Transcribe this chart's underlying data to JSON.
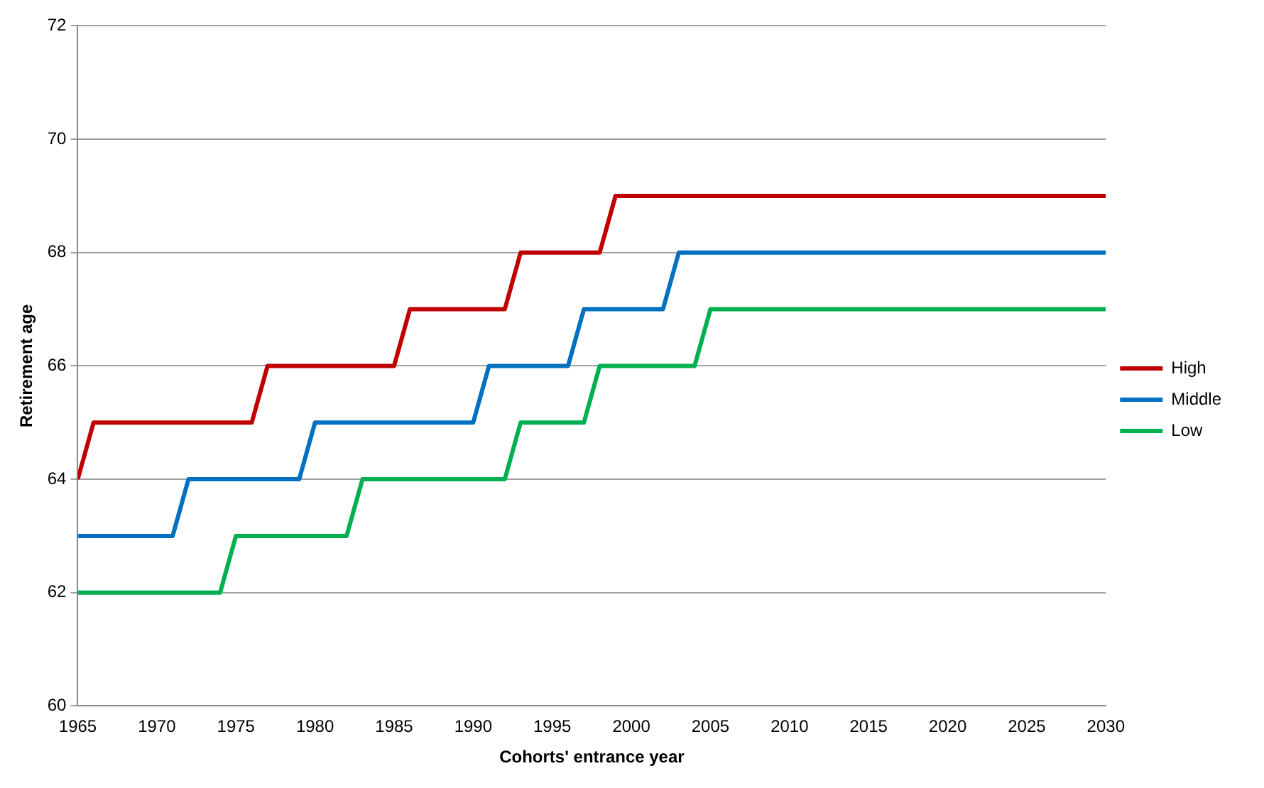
{
  "chart_data": {
    "type": "line",
    "xlabel": "Cohorts' entrance year",
    "ylabel": "Retirement age",
    "xlim": [
      1965,
      2030
    ],
    "xticks": [
      1965,
      1970,
      1975,
      1980,
      1985,
      1990,
      1995,
      2000,
      2005,
      2010,
      2015,
      2020,
      2025,
      2030
    ],
    "ylim": [
      60,
      72
    ],
    "yticks": [
      60,
      62,
      64,
      66,
      68,
      70,
      72
    ],
    "grid": "y",
    "legend": "right",
    "marker": "none",
    "line_style": "solid",
    "series": [
      {
        "name": "High",
        "color": "#c00000",
        "x": [
          1965,
          1966,
          1976,
          1977,
          1985,
          1986,
          1992,
          1993,
          1998,
          1999,
          2030
        ],
        "values": [
          64,
          65,
          65,
          66,
          66,
          67,
          67,
          68,
          68,
          69,
          69
        ]
      },
      {
        "name": "Middle",
        "color": "#0070c0",
        "x": [
          1965,
          1971,
          1972,
          1979,
          1980,
          1990,
          1991,
          1996,
          1997,
          2002,
          2003,
          2030
        ],
        "values": [
          63,
          63,
          64,
          64,
          65,
          65,
          66,
          66,
          67,
          67,
          68,
          68
        ]
      },
      {
        "name": "Low",
        "color": "#00b050",
        "x": [
          1965,
          1974,
          1975,
          1982,
          1983,
          1992,
          1993,
          1997,
          1998,
          2004,
          2005,
          2030
        ],
        "values": [
          62,
          62,
          63,
          63,
          64,
          64,
          65,
          65,
          66,
          66,
          67,
          67
        ]
      }
    ]
  }
}
